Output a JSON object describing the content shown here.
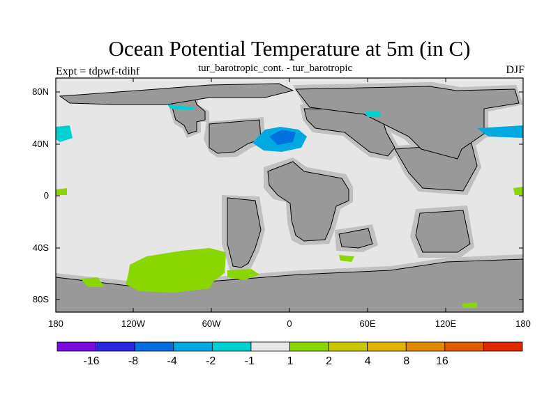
{
  "header": {
    "title": "Ocean Potential Temperature at 5m (in C)",
    "subtitle": "tur_barotropic_cont. - tur_barotropic",
    "left_label": "Expt = tdpwf-tdihf",
    "right_label": "DJF"
  },
  "map": {
    "projection": "cylindrical-equidistant",
    "lon_range": [
      -180,
      180
    ],
    "lat_range": [
      -90,
      90
    ],
    "lat_ticks": [
      "80N",
      "40N",
      "0",
      "40S",
      "80S"
    ],
    "lon_ticks": [
      "180",
      "120W",
      "60W",
      "0",
      "60E",
      "120E",
      "180"
    ],
    "colors": {
      "ocean_near_zero": "#e6e6e6",
      "land": "#999999",
      "coast_mask": "#c0c0c0",
      "warm_1_2": "#8ad600",
      "cool_neg1_neg2": "#00d0d0",
      "cool_neg2_neg4": "#00a9e0",
      "cool_neg4_neg8": "#0070e0"
    }
  },
  "colorbar": {
    "colors": [
      "#7a0ae0",
      "#2b28e0",
      "#0070e0",
      "#00a9e0",
      "#00d0d0",
      "#e6e6e6",
      "#8ad600",
      "#c8c800",
      "#e0b400",
      "#e08a00",
      "#e05c00",
      "#e02800"
    ],
    "labels": [
      "-16",
      "-8",
      "-4",
      "-2",
      "-1",
      "1",
      "2",
      "4",
      "8",
      "16"
    ]
  }
}
